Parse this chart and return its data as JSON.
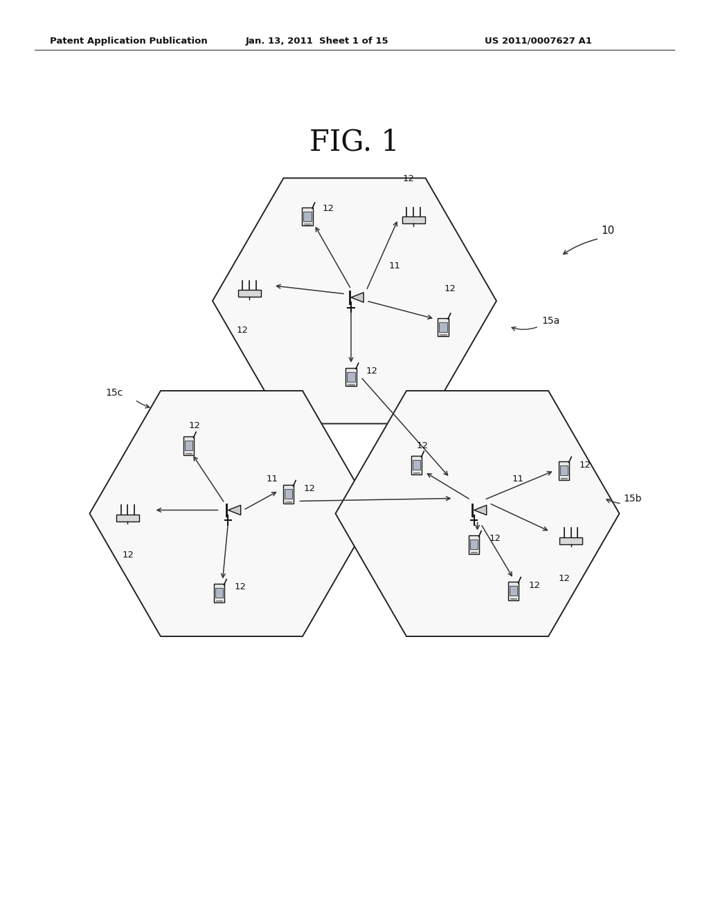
{
  "title": "FIG. 1",
  "header_left": "Patent Application Publication",
  "header_center": "Jan. 13, 2011  Sheet 1 of 15",
  "header_right": "US 2011/0007627 A1",
  "bg_color": "#ffffff",
  "label_10": "10",
  "label_15a": "15a",
  "label_15b": "15b",
  "label_15c": "15c",
  "label_11": "11",
  "label_12": "12",
  "fig_width": 10.24,
  "fig_height": 13.2,
  "dpi": 100
}
